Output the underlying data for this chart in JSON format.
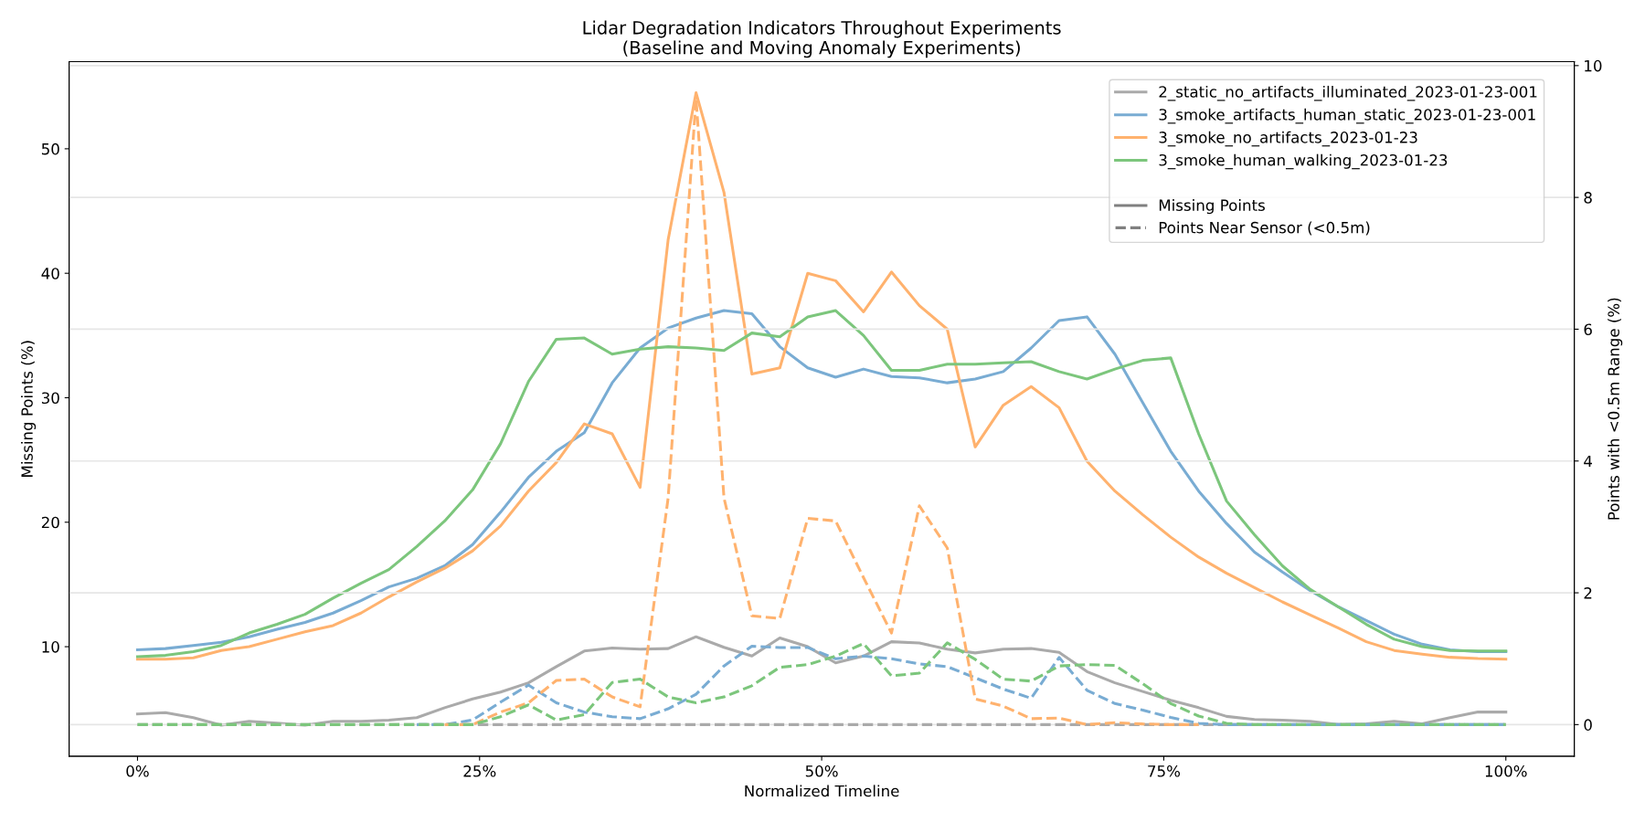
{
  "chart_data": {
    "type": "line",
    "title": "Lidar Degradation Indicators Throughout Experiments\n(Baseline and Moving Anomaly Experiments)",
    "xlabel": "Normalized Timeline",
    "ylabel": "Missing Points (%)",
    "y2label": "Points with <0.5m Range (%)",
    "x": [
      0,
      2.04,
      4.08,
      6.12,
      8.16,
      10.2,
      12.24,
      14.29,
      16.33,
      18.37,
      20.41,
      22.45,
      24.49,
      26.53,
      28.57,
      30.61,
      32.65,
      34.69,
      36.73,
      38.78,
      40.82,
      42.86,
      44.9,
      46.94,
      48.98,
      51.02,
      53.06,
      55.1,
      57.14,
      59.18,
      61.22,
      63.27,
      65.31,
      67.35,
      69.39,
      71.43,
      73.47,
      75.51,
      77.55,
      79.59,
      81.63,
      83.67,
      85.71,
      87.76,
      89.8,
      91.84,
      93.88,
      95.92,
      97.96,
      100
    ],
    "xlim": [
      -5,
      105
    ],
    "xticks": [
      {
        "value": 0,
        "label": "0%"
      },
      {
        "value": 25,
        "label": "25%"
      },
      {
        "value": 50,
        "label": "50%"
      },
      {
        "value": 75,
        "label": "75%"
      },
      {
        "value": 100,
        "label": "100%"
      }
    ],
    "ylim": [
      1.2,
      57
    ],
    "yticks": [
      10,
      20,
      30,
      40,
      50
    ],
    "y2lim": [
      -0.48,
      10.06
    ],
    "y2ticks": [
      0,
      2,
      4,
      6,
      8,
      10
    ],
    "grid": "y2",
    "legend": "top right",
    "annotations": [
      "Missing Points",
      "Points Near Sensor (<0.5m)"
    ],
    "series": [
      {
        "name": "2_static_no_artifacts_illuminated_2023-01-23-001",
        "color": "#aaaaaa",
        "line_style": "solid",
        "values": [
          4.6,
          4.7,
          4.3,
          3.7,
          4.0,
          3.85,
          3.7,
          4.0,
          4.0,
          4.1,
          4.3,
          5.1,
          5.8,
          6.35,
          7.1,
          8.4,
          9.65,
          9.9,
          9.8,
          9.85,
          10.8,
          9.95,
          9.25,
          10.7,
          10.0,
          8.7,
          9.25,
          10.4,
          10.3,
          9.8,
          9.5,
          9.8,
          9.85,
          9.55,
          8.0,
          7.1,
          6.4,
          5.7,
          5.1,
          4.4,
          4.15,
          4.1,
          4.0,
          3.75,
          3.8,
          4.0,
          3.8,
          4.3,
          4.75,
          4.75
        ]
      },
      {
        "name": "3_smoke_artifacts_human_static_2023-01-23-001",
        "color": "#79acd3",
        "line_style": "solid",
        "values": [
          9.75,
          9.85,
          10.1,
          10.35,
          10.8,
          11.4,
          11.95,
          12.7,
          13.7,
          14.8,
          15.5,
          16.5,
          18.2,
          20.8,
          23.6,
          25.7,
          27.2,
          31.2,
          34.0,
          35.6,
          36.4,
          37.0,
          36.75,
          34.1,
          32.4,
          31.65,
          32.3,
          31.7,
          31.6,
          31.2,
          31.5,
          32.1,
          34.0,
          36.2,
          36.5,
          33.5,
          29.6,
          25.7,
          22.5,
          19.9,
          17.6,
          16.0,
          14.5,
          13.2,
          12.1,
          11.0,
          10.2,
          9.75,
          9.6,
          9.6
        ]
      },
      {
        "name": "3_smoke_no_artifacts_2023-01-23",
        "color": "#ffb26e",
        "line_style": "solid",
        "values": [
          9.0,
          9.0,
          9.1,
          9.7,
          10.0,
          10.6,
          11.2,
          11.7,
          12.7,
          14.0,
          15.2,
          16.3,
          17.7,
          19.7,
          22.5,
          24.8,
          27.9,
          27.1,
          22.8,
          42.7,
          54.5,
          46.5,
          31.9,
          32.4,
          40.0,
          39.4,
          36.9,
          40.1,
          37.4,
          35.5,
          26.05,
          29.4,
          30.9,
          29.2,
          24.9,
          22.5,
          20.6,
          18.8,
          17.2,
          15.9,
          14.75,
          13.6,
          12.55,
          11.5,
          10.4,
          9.7,
          9.4,
          9.15,
          9.05,
          9.0
        ]
      },
      {
        "name": "3_smoke_human_walking_2023-01-23",
        "color": "#7cc67c",
        "line_style": "solid",
        "values": [
          9.2,
          9.3,
          9.6,
          10.1,
          11.1,
          11.8,
          12.6,
          13.9,
          15.1,
          16.2,
          18.05,
          20.1,
          22.6,
          26.3,
          31.3,
          34.7,
          34.8,
          33.5,
          33.9,
          34.1,
          34.0,
          33.8,
          35.2,
          34.9,
          36.5,
          37.0,
          35.0,
          32.2,
          32.2,
          32.7,
          32.7,
          32.8,
          32.9,
          32.1,
          31.5,
          32.3,
          33.0,
          33.2,
          27.1,
          21.7,
          19.0,
          16.5,
          14.6,
          13.2,
          11.8,
          10.6,
          10.0,
          9.7,
          9.65,
          9.65
        ]
      },
      {
        "color": "#aaaaaa",
        "axis": "y2",
        "line_style": "dashed",
        "values": [
          0,
          0,
          0,
          0,
          0,
          0,
          0,
          0,
          0,
          0,
          0,
          0,
          0,
          0,
          0,
          0,
          0,
          0,
          0,
          0,
          0,
          0,
          0,
          0,
          0,
          0,
          0,
          0,
          0,
          0,
          0,
          0,
          0,
          0,
          0,
          0,
          0,
          0,
          0,
          0,
          0,
          0,
          0,
          0,
          0,
          0,
          0,
          0,
          0,
          0
        ]
      },
      {
        "color": "#79acd3",
        "axis": "y2",
        "line_style": "dashed",
        "values": [
          null,
          null,
          null,
          null,
          null,
          null,
          null,
          null,
          null,
          null,
          0,
          0,
          0.07,
          0.34,
          0.6,
          0.33,
          0.19,
          0.12,
          0.09,
          0.24,
          0.46,
          0.89,
          1.19,
          1.17,
          1.17,
          1.0,
          1.04,
          1.0,
          0.92,
          0.88,
          0.71,
          0.54,
          0.4,
          1.02,
          0.52,
          0.32,
          0.22,
          0.11,
          0.02,
          0,
          0,
          0,
          0,
          0,
          0,
          0,
          0,
          0,
          0,
          0
        ]
      },
      {
        "color": "#ffb26e",
        "axis": "y2",
        "line_style": "dashed",
        "values": [
          null,
          null,
          null,
          null,
          null,
          null,
          null,
          null,
          null,
          null,
          null,
          0,
          0,
          0.19,
          0.33,
          0.67,
          0.69,
          0.42,
          0.27,
          3.44,
          9.5,
          3.44,
          1.65,
          1.61,
          3.13,
          3.09,
          2.23,
          1.39,
          3.32,
          2.68,
          0.39,
          0.28,
          0.09,
          0.1,
          0,
          0.03,
          0.01,
          0,
          0,
          null,
          null,
          null,
          null,
          null,
          null,
          null,
          null,
          null,
          null,
          null
        ]
      },
      {
        "color": "#7cc67c",
        "axis": "y2",
        "line_style": "dashed",
        "values": [
          0,
          0,
          0,
          0,
          0,
          0,
          0,
          0,
          0,
          0,
          0,
          0,
          0,
          0.12,
          0.3,
          0.07,
          0.15,
          0.64,
          0.69,
          0.42,
          0.33,
          0.42,
          0.59,
          0.87,
          0.91,
          1.04,
          1.23,
          0.74,
          0.78,
          1.24,
          0.99,
          0.69,
          0.66,
          0.89,
          0.91,
          0.9,
          0.62,
          0.32,
          0.13,
          0.02,
          0,
          0,
          0,
          0,
          0,
          0,
          0,
          0,
          0,
          0
        ]
      }
    ]
  }
}
